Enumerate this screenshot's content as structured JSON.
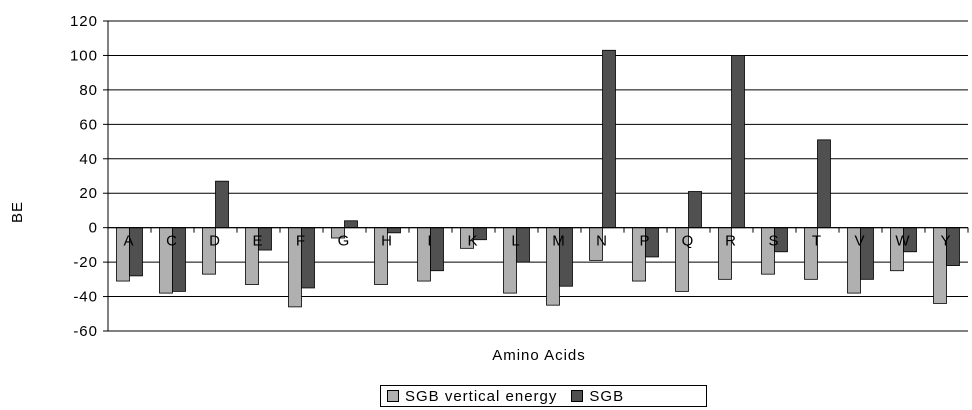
{
  "chart_data": {
    "type": "bar",
    "categories": [
      "A",
      "C",
      "D",
      "E",
      "F",
      "G",
      "H",
      "I",
      "K",
      "L",
      "M",
      "N",
      "P",
      "Q",
      "R",
      "S",
      "T",
      "V",
      "W",
      "Y"
    ],
    "series": [
      {
        "name": "SGB vertical energy",
        "color": "#b0b0b0",
        "values": [
          -31,
          -38,
          -27,
          -33,
          -46,
          -6,
          -33,
          -31,
          -12,
          -38,
          -45,
          -19,
          -31,
          -37,
          -30,
          -27,
          -30,
          -38,
          -25,
          -44
        ]
      },
      {
        "name": "SGB",
        "color": "#505050",
        "values": [
          -28,
          -37,
          27,
          -13,
          -35,
          4,
          -3,
          -25,
          -7,
          -20,
          -34,
          103,
          -17,
          21,
          100,
          -14,
          51,
          -30,
          -14,
          -22
        ]
      }
    ],
    "xlabel": "Amino Acids",
    "ylabel": "BE",
    "ylim": [
      -60,
      120
    ],
    "yticks": [
      -60,
      -40,
      -20,
      0,
      20,
      40,
      60,
      80,
      100,
      120
    ],
    "grid": true,
    "legend": "bottom"
  }
}
